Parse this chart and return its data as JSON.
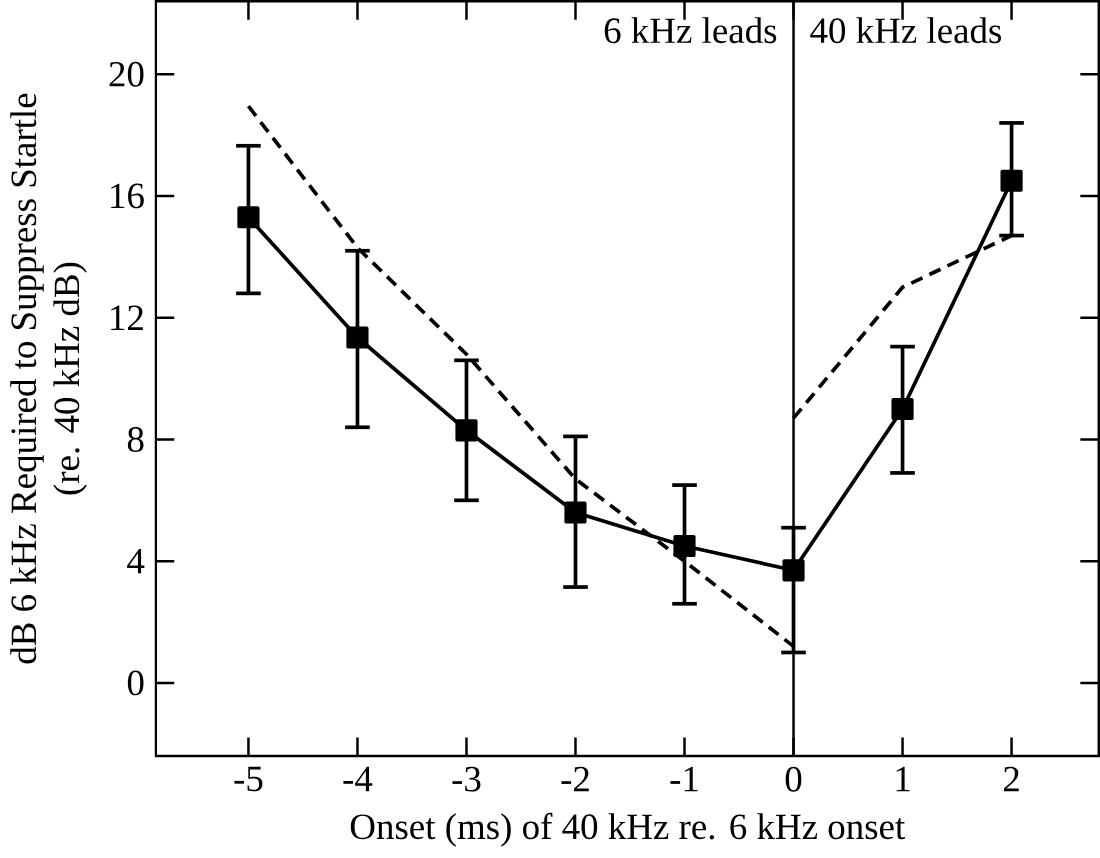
{
  "chart_data": {
    "type": "line",
    "xlabel": "Onset (ms) of 40 kHz re. 6 kHz onset",
    "ylabel": "dB 6 kHz Required to Suppress Startle\n(re. 40 kHz dB)",
    "xlim": [
      -5.85,
      2.8
    ],
    "ylim": [
      -2.4,
      22.4
    ],
    "xticks": [
      -5,
      -4,
      -3,
      -2,
      -1,
      0,
      1,
      2
    ],
    "yticks": [
      0,
      4,
      8,
      12,
      16,
      20
    ],
    "series": [
      {
        "color": "#000000",
        "marker": "square",
        "line_style": "solid",
        "x": [
          -5,
          -4,
          -3,
          -2,
          -1,
          0,
          1,
          2
        ],
        "values": [
          15.3,
          11.35,
          8.3,
          5.6,
          4.5,
          3.7,
          9.0,
          16.5
        ],
        "errors": [
          [
            12.8,
            17.65
          ],
          [
            8.4,
            14.2
          ],
          [
            6.0,
            10.6
          ],
          [
            3.15,
            8.1
          ],
          [
            2.6,
            6.5
          ],
          [
            1.0,
            5.1
          ],
          [
            6.9,
            11.05
          ],
          [
            14.7,
            18.4
          ]
        ]
      },
      {
        "color": "#000000",
        "marker": "none",
        "line_style": "dashed",
        "x": [
          -5,
          -4,
          -3,
          -2,
          -1,
          0
        ],
        "values": [
          18.95,
          14.3,
          10.8,
          6.7,
          4.0,
          1.2
        ]
      },
      {
        "color": "#000000",
        "marker": "none",
        "line_style": "dashed",
        "x": [
          0,
          1,
          2
        ],
        "values": [
          8.7,
          13.0,
          14.7
        ]
      }
    ],
    "ref_lines": [
      {
        "axis": "x",
        "value": 0,
        "color": "#000000",
        "line_style": "solid"
      }
    ],
    "annotations": [
      "6 kHz leads",
      "40 kHz leads"
    ]
  }
}
